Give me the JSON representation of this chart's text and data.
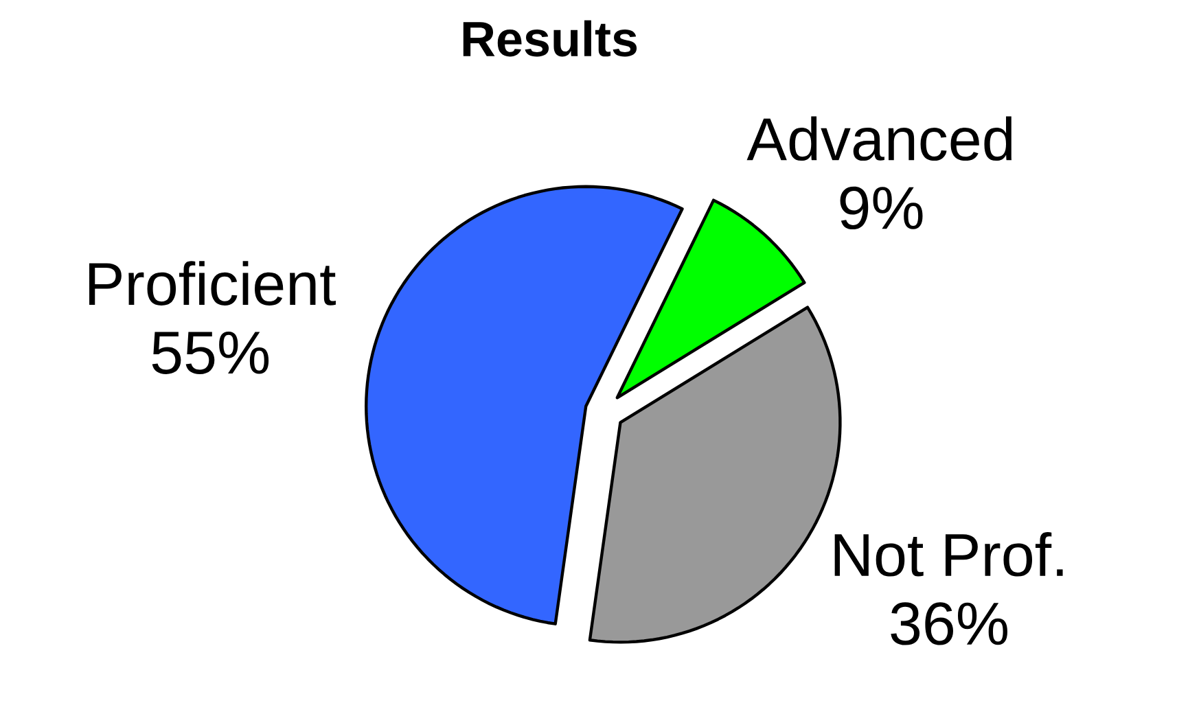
{
  "chart_data": {
    "type": "pie",
    "title": "Results",
    "categories": [
      "Advanced",
      "Not Prof.",
      "Proficient"
    ],
    "values": [
      9,
      36,
      55
    ],
    "value_labels": [
      "9%",
      "36%",
      "55%"
    ],
    "colors": [
      "#00ff00",
      "#999999",
      "#3366ff"
    ]
  }
}
